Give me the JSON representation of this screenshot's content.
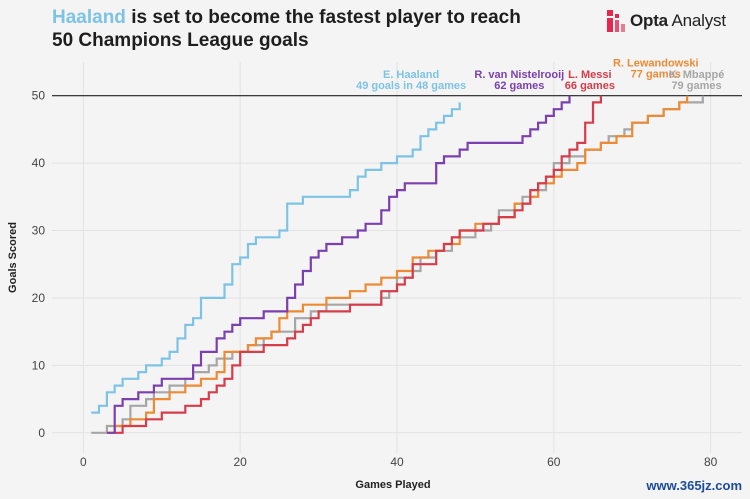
{
  "header": {
    "title_highlight": "Haaland",
    "title_rest": " is set to become the fastest player to reach",
    "title_line2": "50 Champions League goals",
    "highlight_color": "#7ec3e6"
  },
  "brand": {
    "logo_bold": "Opta",
    "logo_rest": " Analyst",
    "logo_color": "#e5294e"
  },
  "watermark": "www.365jz.com",
  "chart_data": {
    "type": "line",
    "line_style": "step",
    "xlabel": "Games Played",
    "ylabel": "Goals Scored",
    "xlim": [
      -4,
      84
    ],
    "ylim": [
      -3,
      55
    ],
    "xticks": [
      0,
      20,
      40,
      60,
      80
    ],
    "yticks": [
      0,
      10,
      20,
      30,
      40,
      50
    ],
    "grid": true,
    "reference_line": {
      "y": 50,
      "color": "#222222"
    },
    "series": [
      {
        "name": "E. Haaland",
        "color": "#7ec3e6",
        "label_lines": [
          "E. Haaland",
          "49 goals in 48 games"
        ],
        "label_anchor": [
          48,
          49
        ],
        "points": [
          [
            1,
            3
          ],
          [
            2,
            4
          ],
          [
            3,
            6
          ],
          [
            4,
            7
          ],
          [
            5,
            8
          ],
          [
            7,
            9
          ],
          [
            8,
            10
          ],
          [
            10,
            11
          ],
          [
            11,
            12
          ],
          [
            12,
            14
          ],
          [
            13,
            16
          ],
          [
            14,
            17
          ],
          [
            15,
            20
          ],
          [
            18,
            22
          ],
          [
            19,
            25
          ],
          [
            20,
            26
          ],
          [
            21,
            28
          ],
          [
            22,
            29
          ],
          [
            25,
            30
          ],
          [
            26,
            34
          ],
          [
            28,
            35
          ],
          [
            34,
            36
          ],
          [
            35,
            38
          ],
          [
            36,
            39
          ],
          [
            38,
            40
          ],
          [
            40,
            41
          ],
          [
            42,
            42
          ],
          [
            43,
            44
          ],
          [
            44,
            45
          ],
          [
            45,
            46
          ],
          [
            46,
            47
          ],
          [
            47,
            48
          ],
          [
            48,
            49
          ]
        ]
      },
      {
        "name": "R. van Nistelrooij",
        "color": "#7b3fb0",
        "label_lines": [
          "R. van Nistelrooij",
          "62 games"
        ],
        "label_anchor": [
          62,
          50
        ],
        "points": [
          [
            3,
            0
          ],
          [
            4,
            4
          ],
          [
            5,
            5
          ],
          [
            7,
            6
          ],
          [
            9,
            7
          ],
          [
            10,
            8
          ],
          [
            14,
            10
          ],
          [
            15,
            12
          ],
          [
            17,
            14
          ],
          [
            18,
            15
          ],
          [
            19,
            16
          ],
          [
            20,
            17
          ],
          [
            23,
            18
          ],
          [
            26,
            20
          ],
          [
            27,
            22
          ],
          [
            28,
            24
          ],
          [
            29,
            26
          ],
          [
            30,
            27
          ],
          [
            31,
            28
          ],
          [
            33,
            29
          ],
          [
            35,
            30
          ],
          [
            36,
            31
          ],
          [
            38,
            33
          ],
          [
            39,
            35
          ],
          [
            40,
            36
          ],
          [
            41,
            37
          ],
          [
            45,
            40
          ],
          [
            46,
            41
          ],
          [
            48,
            42
          ],
          [
            49,
            43
          ],
          [
            56,
            44
          ],
          [
            57,
            45
          ],
          [
            58,
            46
          ],
          [
            59,
            47
          ],
          [
            60,
            48
          ],
          [
            61,
            49
          ],
          [
            62,
            50
          ]
        ]
      },
      {
        "name": "L. Messi",
        "color": "#d63c4a",
        "label_lines": [
          "L. Messi",
          "66 games"
        ],
        "label_anchor": [
          66,
          50
        ],
        "points": [
          [
            4,
            0
          ],
          [
            5,
            1
          ],
          [
            8,
            2
          ],
          [
            10,
            3
          ],
          [
            13,
            4
          ],
          [
            15,
            5
          ],
          [
            16,
            6
          ],
          [
            17,
            7
          ],
          [
            18,
            8
          ],
          [
            19,
            10
          ],
          [
            20,
            12
          ],
          [
            23,
            13
          ],
          [
            26,
            14
          ],
          [
            27,
            15
          ],
          [
            28,
            16
          ],
          [
            29,
            17
          ],
          [
            30,
            18
          ],
          [
            34,
            19
          ],
          [
            38,
            21
          ],
          [
            40,
            22
          ],
          [
            41,
            23
          ],
          [
            42,
            25
          ],
          [
            45,
            27
          ],
          [
            46,
            28
          ],
          [
            47,
            29
          ],
          [
            48,
            30
          ],
          [
            51,
            31
          ],
          [
            53,
            32
          ],
          [
            55,
            33
          ],
          [
            56,
            34
          ],
          [
            57,
            36
          ],
          [
            58,
            37
          ],
          [
            59,
            38
          ],
          [
            60,
            39
          ],
          [
            61,
            41
          ],
          [
            62,
            42
          ],
          [
            63,
            43
          ],
          [
            64,
            46
          ],
          [
            65,
            49
          ],
          [
            66,
            50
          ]
        ]
      },
      {
        "name": "R. Lewandowski",
        "color": "#ee8a34",
        "label_lines": [
          "R. Lewandowski",
          "77 games"
        ],
        "label_anchor": [
          77,
          50
        ],
        "points": [
          [
            3,
            0
          ],
          [
            4,
            1
          ],
          [
            6,
            2
          ],
          [
            8,
            3
          ],
          [
            9,
            5
          ],
          [
            11,
            6
          ],
          [
            13,
            7
          ],
          [
            15,
            8
          ],
          [
            17,
            9
          ],
          [
            18,
            12
          ],
          [
            21,
            13
          ],
          [
            22,
            14
          ],
          [
            24,
            15
          ],
          [
            25,
            17
          ],
          [
            26,
            18
          ],
          [
            28,
            19
          ],
          [
            31,
            20
          ],
          [
            34,
            21
          ],
          [
            36,
            22
          ],
          [
            38,
            23
          ],
          [
            40,
            24
          ],
          [
            42,
            26
          ],
          [
            44,
            27
          ],
          [
            46,
            28
          ],
          [
            48,
            30
          ],
          [
            50,
            31
          ],
          [
            53,
            32
          ],
          [
            55,
            34
          ],
          [
            57,
            35
          ],
          [
            58,
            37
          ],
          [
            60,
            38
          ],
          [
            61,
            39
          ],
          [
            63,
            40
          ],
          [
            64,
            42
          ],
          [
            66,
            43
          ],
          [
            68,
            44
          ],
          [
            70,
            46
          ],
          [
            72,
            47
          ],
          [
            74,
            48
          ],
          [
            76,
            49
          ],
          [
            77,
            50
          ]
        ]
      },
      {
        "name": "K. Mbappé",
        "color": "#a6a6a6",
        "label_lines": [
          "K. Mbappé",
          "79 games"
        ],
        "label_anchor": [
          79,
          50
        ],
        "points": [
          [
            1,
            0
          ],
          [
            3,
            1
          ],
          [
            5,
            2
          ],
          [
            6,
            4
          ],
          [
            8,
            5
          ],
          [
            9,
            6
          ],
          [
            11,
            7
          ],
          [
            13,
            8
          ],
          [
            14,
            9
          ],
          [
            16,
            10
          ],
          [
            17,
            11
          ],
          [
            19,
            12
          ],
          [
            21,
            13
          ],
          [
            23,
            14
          ],
          [
            24,
            15
          ],
          [
            27,
            17
          ],
          [
            29,
            18
          ],
          [
            31,
            19
          ],
          [
            38,
            20
          ],
          [
            39,
            21
          ],
          [
            40,
            23
          ],
          [
            42,
            24
          ],
          [
            43,
            26
          ],
          [
            45,
            27
          ],
          [
            47,
            29
          ],
          [
            50,
            30
          ],
          [
            52,
            31
          ],
          [
            53,
            33
          ],
          [
            55,
            34
          ],
          [
            56,
            35
          ],
          [
            58,
            36
          ],
          [
            59,
            38
          ],
          [
            60,
            40
          ],
          [
            62,
            41
          ],
          [
            64,
            42
          ],
          [
            66,
            43
          ],
          [
            67,
            44
          ],
          [
            69,
            45
          ],
          [
            70,
            46
          ],
          [
            72,
            47
          ],
          [
            74,
            48
          ],
          [
            76,
            49
          ],
          [
            79,
            50
          ]
        ]
      }
    ]
  }
}
